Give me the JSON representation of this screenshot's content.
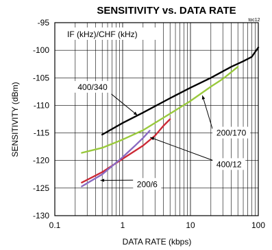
{
  "chart_data": {
    "type": "line",
    "title": "SENSITIVITY vs. DATA RATE",
    "figure_id": "toc12",
    "note": "IF (kHz)/CHF (kHz)",
    "xlabel": "DATA RATE (kbps)",
    "ylabel": "SENSITIVITY (dBm)",
    "xscale": "log",
    "xlim": [
      0.1,
      100
    ],
    "ylim": [
      -130,
      -95
    ],
    "x_ticks": [
      0.1,
      1,
      10,
      100
    ],
    "x_tick_labels": [
      "0.1",
      "1",
      "10",
      "100"
    ],
    "y_ticks": [
      -130,
      -125,
      -120,
      -115,
      -110,
      -105,
      -100,
      -95
    ],
    "y_tick_labels": [
      "-130",
      "-125",
      "-120",
      "-115",
      "-110",
      "-105",
      "-100",
      "-95"
    ],
    "grid": true,
    "series": [
      {
        "name": "400/340",
        "color": "#000000",
        "x": [
          0.5,
          1,
          2,
          5,
          10,
          20,
          40,
          60,
          80,
          100
        ],
        "y": [
          -115.3,
          -113.2,
          -111.3,
          -108.7,
          -106.8,
          -105.0,
          -103.0,
          -102.0,
          -101.2,
          -99.5
        ],
        "label_pos": [
          0.36,
          -107.2
        ],
        "arrow_to": [
          1.65,
          -111.8
        ]
      },
      {
        "name": "200/170",
        "color": "#99c93c",
        "x": [
          0.25,
          0.5,
          1,
          2,
          5,
          10,
          20,
          30,
          50
        ],
        "y": [
          -118.6,
          -117.7,
          -116.2,
          -114.5,
          -111.5,
          -109.2,
          -106.6,
          -105.2,
          -103.0
        ],
        "label_pos": [
          40,
          -115.5
        ],
        "arrow_to": [
          15,
          -108.2
        ]
      },
      {
        "name": "400/12",
        "color": "#cc2a36",
        "x": [
          0.25,
          0.5,
          1,
          2,
          3,
          4,
          5
        ],
        "y": [
          -124.0,
          -122.1,
          -119.7,
          -117.3,
          -115.5,
          -113.7,
          -112.5
        ],
        "label_pos": [
          37,
          -121.2
        ],
        "arrow_to": [
          2.55,
          -115.8
        ]
      },
      {
        "name": "200/6",
        "color": "#8a6ac1",
        "x": [
          0.25,
          0.5,
          1,
          1.5,
          2,
          2.5
        ],
        "y": [
          -124.7,
          -122.5,
          -119.4,
          -117.4,
          -115.9,
          -114.6
        ],
        "label_pos": [
          2.3,
          -124.8
        ],
        "arrow_to": [
          0.47,
          -123.6
        ]
      }
    ]
  }
}
